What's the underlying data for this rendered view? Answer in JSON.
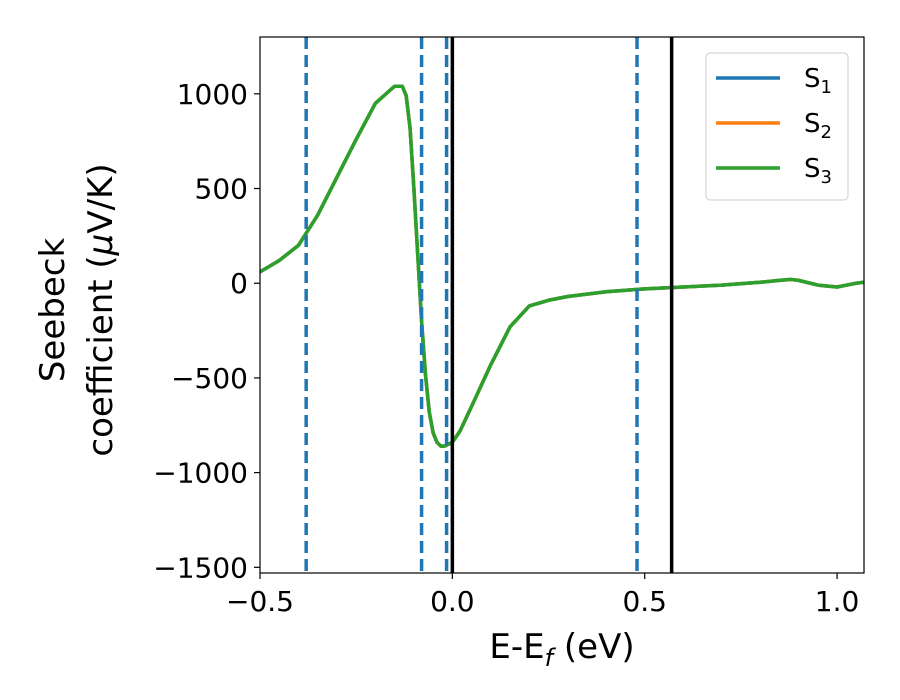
{
  "chart_data": {
    "type": "line",
    "xlabel": "E-E",
    "xlabel_sub": "f",
    "xlabel_unit": " (eV)",
    "ylabel_line1": "Seebeck",
    "ylabel_line2_text": "coefficient  (",
    "ylabel_line2_mu": "μ",
    "ylabel_line2_unit": "V/K)",
    "xlim": [
      -0.5,
      1.07
    ],
    "ylim": [
      -1530,
      1300
    ],
    "x_ticks": [
      -0.5,
      0.0,
      0.5,
      1.0
    ],
    "x_tick_labels": [
      "−0.5",
      "0.0",
      "0.5",
      "1.0"
    ],
    "y_ticks": [
      -1500,
      -1000,
      -500,
      0,
      500,
      1000
    ],
    "y_tick_labels": [
      "−1500",
      "−1000",
      "−500",
      "0",
      "500",
      "1000"
    ],
    "grid": false,
    "legend_position": "top-right",
    "series": [
      {
        "name": "S",
        "sub": "1",
        "color": "#1f77b4",
        "x": [
          -0.5,
          -0.45,
          -0.4,
          -0.35,
          -0.3,
          -0.25,
          -0.2,
          -0.15,
          -0.13,
          -0.12,
          -0.11,
          -0.1,
          -0.09,
          -0.08,
          -0.07,
          -0.06,
          -0.05,
          -0.04,
          -0.03,
          -0.02,
          -0.01,
          0.0,
          0.02,
          0.05,
          0.1,
          0.15,
          0.2,
          0.25,
          0.3,
          0.4,
          0.5,
          0.6,
          0.7,
          0.8,
          0.85,
          0.88,
          0.9,
          0.95,
          1.0,
          1.05,
          1.07
        ],
        "y": [
          60,
          120,
          200,
          360,
          560,
          760,
          950,
          1040,
          1040,
          990,
          820,
          500,
          150,
          -200,
          -480,
          -680,
          -790,
          -840,
          -860,
          -860,
          -850,
          -840,
          -780,
          -650,
          -430,
          -230,
          -120,
          -90,
          -70,
          -45,
          -30,
          -20,
          -10,
          5,
          15,
          20,
          15,
          -10,
          -20,
          0,
          5
        ]
      },
      {
        "name": "S",
        "sub": "2",
        "color": "#ff7f0e",
        "x": [
          -0.5,
          -0.45,
          -0.4,
          -0.35,
          -0.3,
          -0.25,
          -0.2,
          -0.15,
          -0.13,
          -0.12,
          -0.11,
          -0.1,
          -0.09,
          -0.08,
          -0.07,
          -0.06,
          -0.05,
          -0.04,
          -0.03,
          -0.02,
          -0.01,
          0.0,
          0.02,
          0.05,
          0.1,
          0.15,
          0.2,
          0.25,
          0.3,
          0.4,
          0.5,
          0.6,
          0.7,
          0.8,
          0.85,
          0.88,
          0.9,
          0.95,
          1.0,
          1.05,
          1.07
        ],
        "y": [
          60,
          120,
          200,
          360,
          560,
          760,
          950,
          1040,
          1040,
          990,
          820,
          500,
          150,
          -200,
          -480,
          -680,
          -790,
          -840,
          -860,
          -860,
          -850,
          -840,
          -780,
          -650,
          -430,
          -230,
          -120,
          -90,
          -70,
          -45,
          -30,
          -20,
          -10,
          5,
          15,
          20,
          15,
          -10,
          -20,
          0,
          5
        ]
      },
      {
        "name": "S",
        "sub": "3",
        "color": "#2ca02c",
        "x": [
          -0.5,
          -0.45,
          -0.4,
          -0.35,
          -0.3,
          -0.25,
          -0.2,
          -0.15,
          -0.13,
          -0.12,
          -0.11,
          -0.1,
          -0.09,
          -0.08,
          -0.07,
          -0.06,
          -0.05,
          -0.04,
          -0.03,
          -0.02,
          -0.01,
          0.0,
          0.02,
          0.05,
          0.1,
          0.15,
          0.2,
          0.25,
          0.3,
          0.4,
          0.5,
          0.6,
          0.7,
          0.8,
          0.85,
          0.88,
          0.9,
          0.95,
          1.0,
          1.05,
          1.07
        ],
        "y": [
          60,
          120,
          200,
          360,
          560,
          760,
          950,
          1040,
          1040,
          990,
          820,
          500,
          150,
          -200,
          -480,
          -680,
          -790,
          -840,
          -860,
          -860,
          -850,
          -840,
          -780,
          -650,
          -430,
          -230,
          -120,
          -90,
          -70,
          -45,
          -30,
          -20,
          -10,
          5,
          15,
          20,
          15,
          -10,
          -20,
          0,
          5
        ]
      }
    ],
    "vlines_dashed": {
      "color": "#1f77b4",
      "x": [
        -0.38,
        -0.08,
        -0.015,
        0.48
      ]
    },
    "vlines_solid": {
      "color": "#000000",
      "x": [
        0.0,
        0.57
      ]
    }
  }
}
